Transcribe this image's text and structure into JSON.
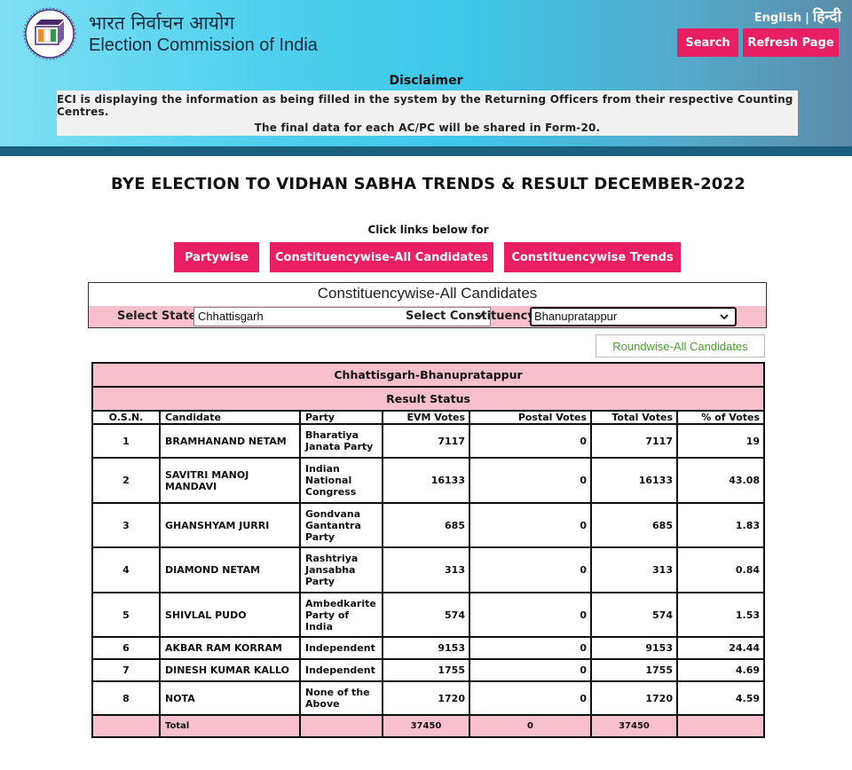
{
  "header": {
    "org_hindi": "भारत निर्वाचन आयोग",
    "org_english": "Election Commission of India",
    "lang_english": "English",
    "lang_separator": "|",
    "lang_hindi": "हिन्दी",
    "search_label": "Search",
    "refresh_label": "Refresh Page",
    "logo_icon": "eci-logo-icon"
  },
  "disclaimer": {
    "title": "Disclaimer",
    "line1": "ECI is displaying the information as being filled in the system by the Returning Officers from their respective Counting Centres.",
    "line2": "The final data for each AC/PC will be shared in Form-20."
  },
  "page": {
    "title": "BYE ELECTION TO VIDHAN SABHA TRENDS & RESULT DECEMBER-2022",
    "links_caption": "Click links below for",
    "links": [
      "Partywise",
      "Constituencywise-All Candidates",
      "Constituencywise Trends"
    ]
  },
  "selector": {
    "title": "Constituencywise-All Candidates",
    "state_label": "Select State",
    "state_value": "Chhattisgarh",
    "constituency_label": "Select Constituency",
    "constituency_value": "Bhanupratappur",
    "roundwise_label": "Roundwise-All Candidates"
  },
  "results": {
    "heading": "Chhattisgarh-Bhanupratappur",
    "status": "Result Status",
    "columns": [
      "O.S.N.",
      "Candidate",
      "Party",
      "EVM Votes",
      "Postal Votes",
      "Total Votes",
      "% of Votes"
    ],
    "rows": [
      [
        "1",
        "BRAMHANAND NETAM",
        "Bharatiya Janata Party",
        "7117",
        "0",
        "7117",
        "19"
      ],
      [
        "2",
        "SAVITRI MANOJ MANDAVI",
        "Indian National Congress",
        "16133",
        "0",
        "16133",
        "43.08"
      ],
      [
        "3",
        "GHANSHYAM JURRI",
        "Gondvana Gantantra Party",
        "685",
        "0",
        "685",
        "1.83"
      ],
      [
        "4",
        "DIAMOND NETAM",
        "Rashtriya Jansabha Party",
        "313",
        "0",
        "313",
        "0.84"
      ],
      [
        "5",
        "SHIVLAL PUDO",
        "Ambedkarite Party of India",
        "574",
        "0",
        "574",
        "1.53"
      ],
      [
        "6",
        "AKBAR RAM KORRAM",
        "Independent",
        "9153",
        "0",
        "9153",
        "24.44"
      ],
      [
        "7",
        "DINESH KUMAR KALLO",
        "Independent",
        "1755",
        "0",
        "1755",
        "4.69"
      ],
      [
        "8",
        "NOTA",
        "None of the Above",
        "1720",
        "0",
        "1720",
        "4.59"
      ]
    ],
    "total": [
      "",
      "Total",
      "",
      "37450",
      "0",
      "37450",
      ""
    ]
  },
  "colors": {
    "accent": "#e91e63",
    "table_header": "#f8c0cc",
    "header_band": "#1b5f7f",
    "roundwise_text": "#4a9e2f"
  }
}
